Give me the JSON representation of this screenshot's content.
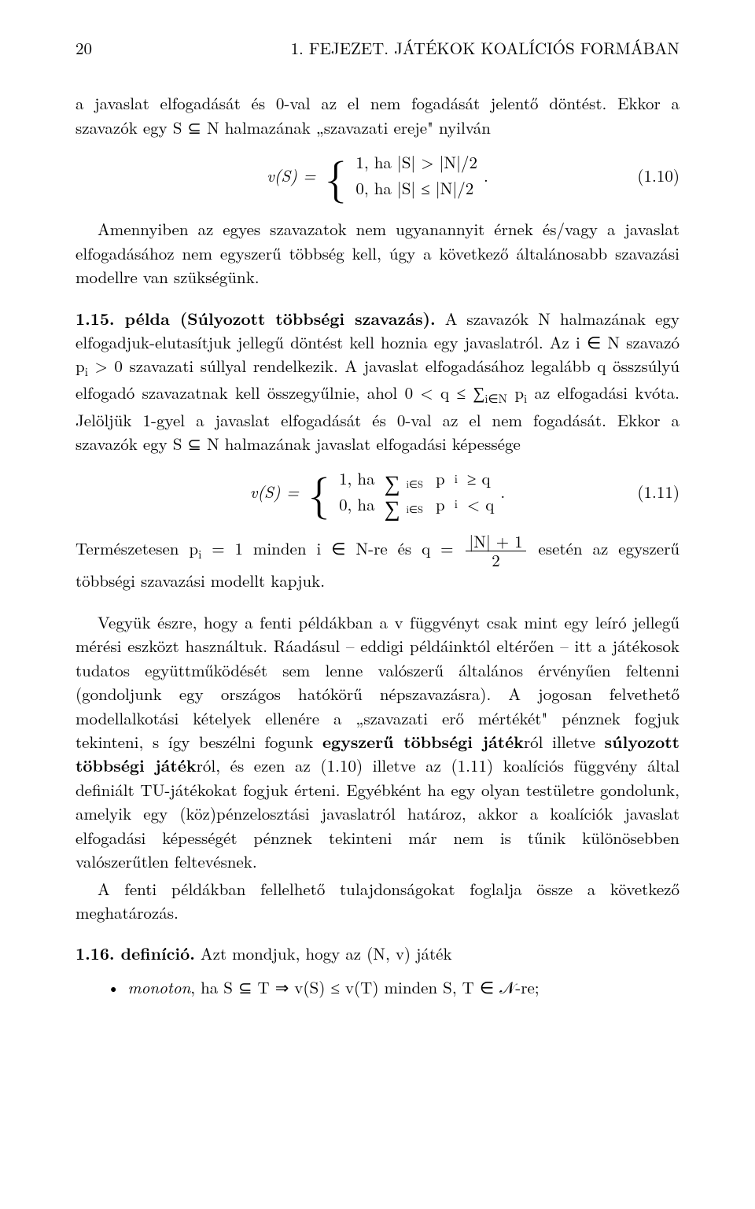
{
  "page_number": "20",
  "running_head": "1. FEJEZET. JÁTÉKOK KOALÍCIÓS FORMÁBAN",
  "para1": "a javaslat elfogadását és 0-val az el nem fogadását jelentő döntést. Ekkor a szavazók egy S ⊆ N halmazának „szavazati ereje\" nyilván",
  "eq110": {
    "lhs": "v(S) =",
    "case1": "1,  ha  |S| > |N|/2",
    "case2": "0,  ha  |S| ≤ |N|/2",
    "period": ".",
    "num": "(1.10)"
  },
  "para2": "Amennyiben az egyes szavazatok nem ugyanannyit érnek és/vagy a javaslat elfogadásához nem egyszerű többség kell, úgy a következő általánosabb szavazási modellre van szükségünk.",
  "example_label": "1.15. példa (Súlyozott többségi szavazás).",
  "para3a": " A szavazók N halmazának egy elfogadjuk-elutasítjuk jellegű döntést kell hoznia egy javaslatról. Az i ∈ N szavazó p",
  "para3a_sub": "i",
  "para3b": " > 0 szavazati súllyal rendelkezik. A javaslat elfogadásához legalább q összsúlyú elfogadó szavazatnak kell összegyűlnie, ahol 0 < q ≤ ∑",
  "para3b_sub": "i∈N",
  "para3c": " p",
  "para3c_sub": "i",
  "para3d": " az elfogadási kvóta. Jelöljük 1-gyel a javaslat elfogadását és 0-val az el nem fogadását. Ekkor a szavazók egy S ⊆ N halmazának javaslat elfogadási képessége",
  "eq111": {
    "lhs": "v(S) =",
    "case1_a": "1,  ha  ",
    "case1_b": " p",
    "case1_c": " ≥ q",
    "case2_a": "0,  ha  ",
    "case2_b": " p",
    "case2_c": " < q",
    "sum_sub": "i∈S",
    "psub": "i",
    "period": ".",
    "num": "(1.11)"
  },
  "para4a": "Természetesen p",
  "para4a_sub": "i",
  "para4b": " = 1 minden i ∈ N-re és q = ",
  "frac_num": "|N| + 1",
  "frac_den": "2",
  "para4c": " esetén az egyszerű többségi szavazási modellt kapjuk.",
  "para5": "Vegyük észre, hogy a fenti példákban a v függvényt csak mint egy leíró jellegű mérési eszközt használtuk. Ráadásul – eddigi példáinktól eltérően – itt a játékosok tudatos együttműködését sem lenne valószerű általános érvényűen feltenni (gondoljunk egy országos hatókörű népszavazásra). A jogosan felvethető modellalkotási kételyek ellenére a „szavazati erő mértékét\" pénznek fogjuk tekinteni, s így beszélni fogunk ",
  "bold1": "egyszerű többségi játék",
  "para5b": "ról illetve ",
  "bold2": "súlyozott többségi játék",
  "para5c": "ról, és ezen az (1.10) illetve az (1.11) koalíciós függvény által definiált TU-játékokat fogjuk érteni. Egyébként ha egy olyan testületre gondolunk, amelyik egy (köz)pénzelosztási javaslatról határoz, akkor a koalíciók javaslat elfogadási képességét pénznek tekinteni már nem is tűnik különösebben valószerűtlen feltevésnek.",
  "para6": "A fenti példákban fellelhető tulajdonságokat foglalja össze a következő meghatározás.",
  "def_label": "1.16. definíció.",
  "def_text": " Azt mondjuk, hogy az (N, v) játék",
  "bullet_label": "monoton",
  "bullet_text": ", ha S ⊆ T ⇒ v(S) ≤ v(T) minden S, T ∈ 𝒩-re;"
}
